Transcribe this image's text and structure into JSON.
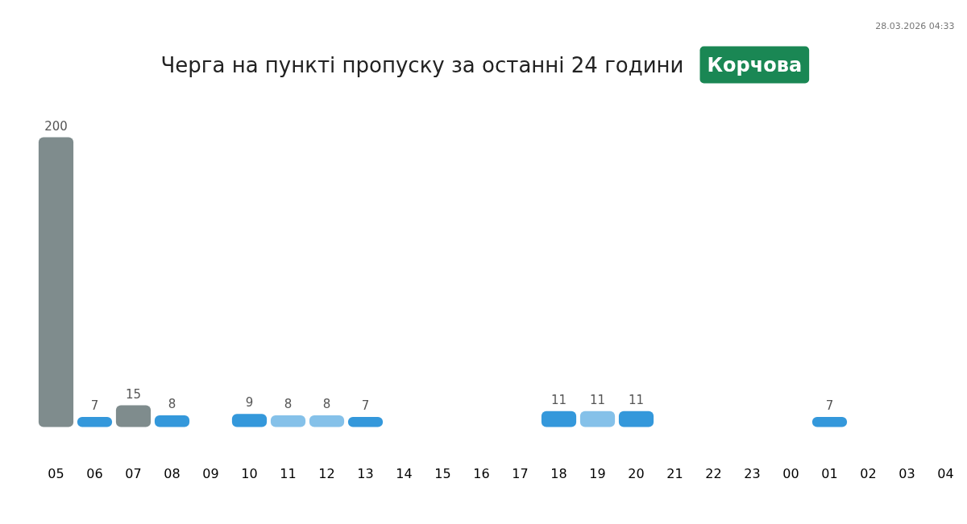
{
  "chart_data": {
    "type": "bar",
    "title": "Черга на пункті пропуску за останні 24 години",
    "subtitle": "Корчова",
    "annotations": [
      "28.03.2026 04:33"
    ],
    "categories": [
      "05",
      "06",
      "07",
      "08",
      "09",
      "10",
      "11",
      "12",
      "13",
      "14",
      "15",
      "16",
      "17",
      "18",
      "19",
      "20",
      "21",
      "22",
      "23",
      "00",
      "01",
      "02",
      "03",
      "04"
    ],
    "values": [
      200,
      7,
      15,
      8,
      null,
      9,
      8,
      8,
      7,
      null,
      null,
      null,
      null,
      11,
      11,
      11,
      null,
      null,
      null,
      null,
      7,
      null,
      null,
      null
    ],
    "colors": [
      "#7f8c8d",
      "#3498db",
      "#7f8c8d",
      "#3498db",
      null,
      "#3498db",
      "#85c1e9",
      "#85c1e9",
      "#3498db",
      null,
      null,
      null,
      null,
      "#3498db",
      "#85c1e9",
      "#3498db",
      null,
      null,
      null,
      null,
      "#3498db",
      null,
      null,
      null
    ],
    "data_labels": true
  }
}
